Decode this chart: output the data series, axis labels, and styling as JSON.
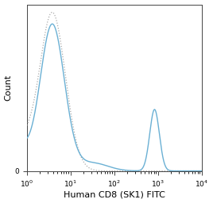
{
  "xlabel": "Human CD8 (SK1) FITC",
  "ylabel": "Count",
  "xlim_log": [
    1.0,
    10000.0
  ],
  "ylim": [
    0,
    420
  ],
  "background_color": "#ffffff",
  "plot_bg_color": "#ffffff",
  "blue_color": "#6ab0d4",
  "gray_color": "#aaaaaa",
  "blue_lw": 1.0,
  "gray_lw": 0.9,
  "xlabel_fontsize": 8.0,
  "ylabel_fontsize": 8.0,
  "tick_fontsize": 6.5,
  "figsize": [
    2.68,
    2.56
  ],
  "dpi": 100,
  "isotype_peak_log": 0.58,
  "isotype_peak_y": 400,
  "isotype_sigma": 0.3,
  "cd8_peak1_log": 0.58,
  "cd8_peak1_y": 370,
  "cd8_peak1_sigma": 0.28,
  "cd8_peak2_log": 2.92,
  "cd8_peak2_y": 155,
  "cd8_peak2_sigma": 0.11,
  "cd8_shoulder_log": 1.5,
  "cd8_shoulder_y": 20,
  "cd8_shoulder_sigma": 0.35
}
